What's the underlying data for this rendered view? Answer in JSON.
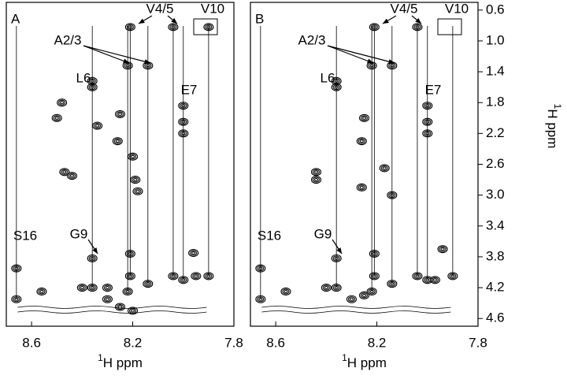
{
  "chart_data": [
    {
      "type": "contour",
      "panel": "A",
      "color": "#000000",
      "xlim": [
        8.7,
        7.8
      ],
      "ylim": [
        0.5,
        4.7
      ],
      "xticks": [
        8.6,
        8.2,
        7.8
      ],
      "xlabel_sup": "1",
      "xlabel": "H ppm",
      "annotations": [
        "V4/5",
        "A2/3",
        "L6",
        "E7",
        "V10",
        "G9",
        "S16"
      ],
      "spin_systems": [
        {
          "x": 8.21,
          "y": [
            0.82,
            3.76,
            4.05
          ]
        },
        {
          "x": 8.04,
          "y": [
            0.82,
            4.05
          ]
        },
        {
          "x": 8.22,
          "y": [
            1.32,
            4.25
          ]
        },
        {
          "x": 8.14,
          "y": [
            1.32,
            4.15
          ]
        },
        {
          "x": 8.36,
          "y": [
            1.52,
            1.6,
            3.82,
            4.2
          ]
        },
        {
          "x": 8.0,
          "y": [
            1.84,
            2.05,
            2.2,
            4.1
          ]
        },
        {
          "x": 7.9,
          "y": [
            0.82,
            4.05
          ]
        },
        {
          "x": 8.66,
          "y": [
            3.95,
            4.35
          ]
        }
      ],
      "peaks": {
        "x": [
          8.48,
          8.34,
          8.26,
          8.2,
          8.44,
          8.47,
          8.19,
          8.18,
          7.96,
          8.56,
          8.3,
          8.25,
          8.2,
          8.3,
          8.4,
          8.25,
          8.5,
          7.95
        ],
        "y": [
          1.8,
          2.1,
          2.3,
          2.5,
          2.75,
          2.7,
          2.8,
          2.95,
          3.75,
          4.25,
          4.35,
          4.45,
          4.5,
          4.2,
          4.2,
          1.95,
          2.0,
          4.05
        ]
      }
    },
    {
      "type": "contour",
      "panel": "B",
      "color": "#000000",
      "xlim": [
        8.7,
        7.8
      ],
      "ylim": [
        0.5,
        4.7
      ],
      "xticks": [
        8.6,
        8.2,
        7.8
      ],
      "xlabel_sup": "1",
      "xlabel": "H ppm",
      "yticks": [
        0.6,
        {
          "value": 1,
          "label": "1.0"
        },
        1.4,
        1.8,
        2.2,
        2.6,
        {
          "value": 3,
          "label": "3.0"
        },
        3.4,
        3.8,
        4.2,
        4.6
      ],
      "ylabel_sup": "1",
      "ylabel": "H ppm",
      "annotations": [
        "V4/5",
        "A2/3",
        "L6",
        "E7",
        "V10",
        "G9",
        "S16"
      ],
      "spin_systems": [
        {
          "x": 8.21,
          "y": [
            0.82,
            3.76,
            4.05
          ]
        },
        {
          "x": 8.04,
          "y": [
            0.82,
            4.05
          ]
        },
        {
          "x": 8.22,
          "y": [
            1.32,
            4.25
          ]
        },
        {
          "x": 8.14,
          "y": [
            1.32,
            4.15
          ]
        },
        {
          "x": 8.36,
          "y": [
            1.52,
            1.6,
            3.82,
            4.2
          ]
        },
        {
          "x": 8.0,
          "y": [
            1.84,
            2.05,
            2.2,
            4.1
          ]
        },
        {
          "x": 7.9,
          "y": [
            4.05
          ]
        },
        {
          "x": 8.66,
          "y": [
            3.95,
            4.35
          ]
        }
      ],
      "peaks": {
        "x": [
          8.44,
          8.44,
          8.26,
          8.25,
          8.26,
          8.14,
          7.94,
          8.56,
          8.3,
          8.25,
          8.4,
          8.17,
          7.97
        ],
        "y": [
          2.7,
          2.8,
          2.3,
          2.0,
          2.9,
          3.0,
          3.7,
          4.25,
          4.35,
          4.3,
          4.2,
          2.65,
          4.1
        ]
      }
    }
  ]
}
